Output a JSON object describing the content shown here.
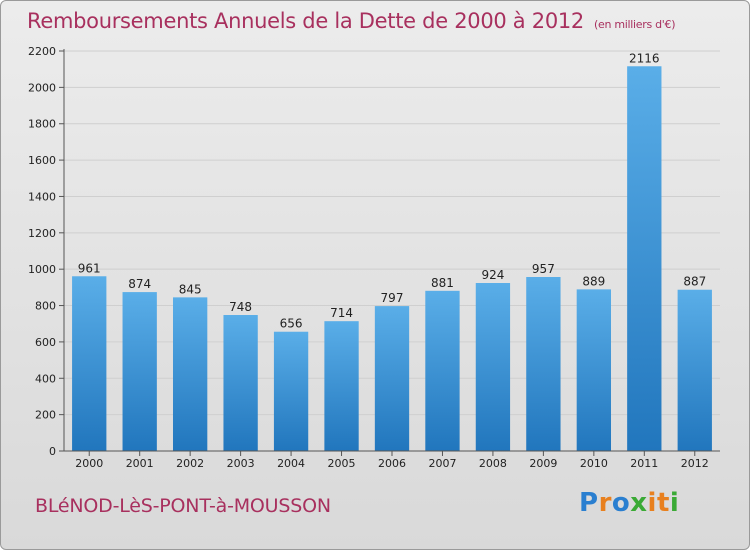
{
  "header": {
    "title": "Remboursements Annuels de la Dette de 2000 à 2012",
    "unit": "(en milliers d'€)"
  },
  "footer": {
    "commune": "BLéNOD-LèS-PONT-à-MOUSSON",
    "logo": {
      "letters": [
        "P",
        "r",
        "o",
        "x",
        "i",
        "t",
        "i"
      ],
      "colors": [
        "#2a7fd0",
        "#e8801e",
        "#2a7fd0",
        "#3aaa35",
        "#e8801e",
        "#e8801e",
        "#3aaa35"
      ]
    }
  },
  "chart_data": {
    "type": "bar",
    "title": "Remboursements Annuels de la Dette de 2000 à 2012",
    "subtitle": "(en milliers d'€)",
    "categories": [
      "2000",
      "2001",
      "2002",
      "2003",
      "2004",
      "2005",
      "2006",
      "2007",
      "2008",
      "2009",
      "2010",
      "2011",
      "2012"
    ],
    "values": [
      961,
      874,
      845,
      748,
      656,
      714,
      797,
      881,
      924,
      957,
      889,
      2116,
      887
    ],
    "ylim": [
      0,
      2200
    ],
    "yticks": [
      0,
      200,
      400,
      600,
      800,
      1000,
      1200,
      1400,
      1600,
      1800,
      2000,
      2200
    ],
    "grid": true,
    "colors": {
      "bar_top": "#5aaee8",
      "bar_bottom": "#2176bd",
      "text": "#a8305e"
    }
  }
}
